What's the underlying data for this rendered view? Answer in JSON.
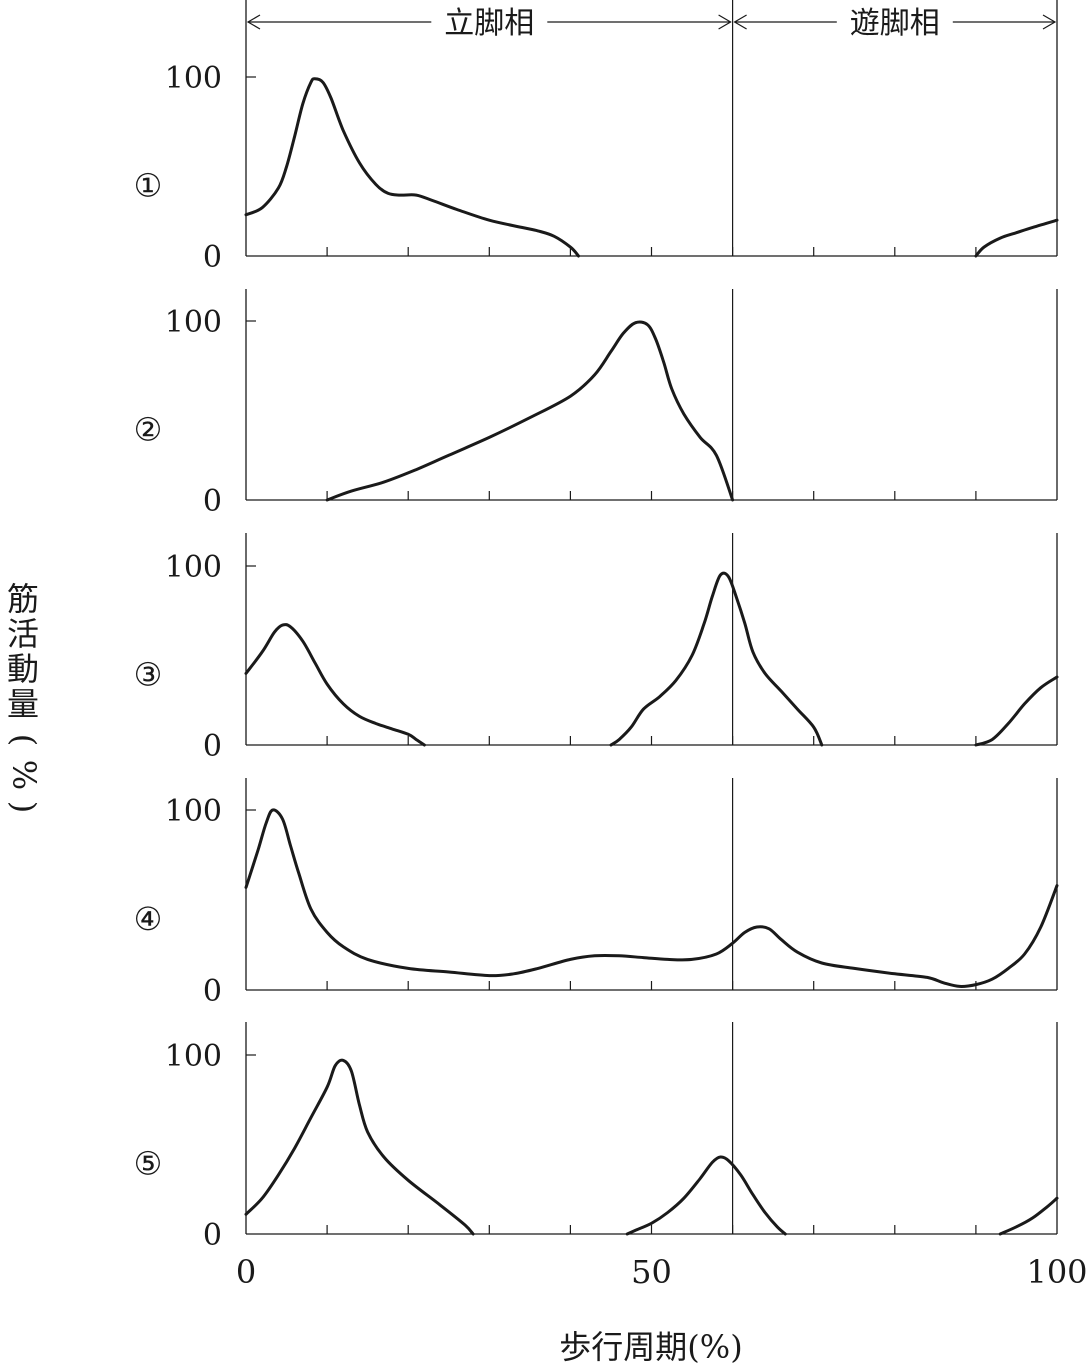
{
  "chart_data": {
    "type": "line",
    "xlabel": "歩行周期(%)",
    "ylabel": "筋活動量(%)",
    "xlim": [
      0,
      100
    ],
    "ylim": [
      0,
      118
    ],
    "x_ticks": [
      0,
      50,
      100
    ],
    "y_ticks": [
      0,
      100
    ],
    "minor_x_ticks": [
      10,
      20,
      30,
      40,
      50,
      60,
      70,
      80,
      90
    ],
    "stance_swing_boundary": 60,
    "phases": [
      {
        "label": "立脚相",
        "from": 0,
        "to": 60
      },
      {
        "label": "遊脚相",
        "from": 60,
        "to": 100
      }
    ],
    "panels": [
      {
        "label": "①",
        "segments": [
          [
            [
              0,
              23
            ],
            [
              2,
              27
            ],
            [
              4,
              38
            ],
            [
              5,
              50
            ],
            [
              6,
              67
            ],
            [
              7,
              85
            ],
            [
              8,
              97
            ],
            [
              8.5,
              99
            ],
            [
              9.5,
              97
            ],
            [
              10.5,
              88
            ],
            [
              12,
              70
            ],
            [
              14,
              52
            ],
            [
              16,
              40
            ],
            [
              17.5,
              35
            ],
            [
              19,
              34
            ],
            [
              21,
              34
            ],
            [
              23,
              31
            ],
            [
              26,
              26
            ],
            [
              30,
              20
            ],
            [
              34,
              16
            ],
            [
              36,
              14
            ],
            [
              38,
              11
            ],
            [
              40,
              5
            ],
            [
              41,
              0
            ]
          ],
          [
            [
              90,
              0
            ],
            [
              91,
              5
            ],
            [
              93,
              10
            ],
            [
              95,
              13
            ],
            [
              97,
              16
            ],
            [
              100,
              20
            ]
          ]
        ]
      },
      {
        "label": "②",
        "segments": [
          [
            [
              10,
              0
            ],
            [
              13,
              5
            ],
            [
              17,
              10
            ],
            [
              21,
              17
            ],
            [
              25,
              25
            ],
            [
              30,
              35
            ],
            [
              35,
              46
            ],
            [
              40,
              58
            ],
            [
              43,
              70
            ],
            [
              45,
              83
            ],
            [
              46.5,
              93
            ],
            [
              48,
              99
            ],
            [
              49.5,
              98
            ],
            [
              50.5,
              90
            ],
            [
              51.5,
              77
            ],
            [
              52.5,
              62
            ],
            [
              54,
              48
            ],
            [
              56,
              35
            ],
            [
              58,
              25
            ],
            [
              60,
              0
            ]
          ]
        ]
      },
      {
        "label": "③",
        "segments": [
          [
            [
              0,
              40
            ],
            [
              2,
              52
            ],
            [
              3.5,
              63
            ],
            [
              4.5,
              67
            ],
            [
              5.5,
              66
            ],
            [
              7,
              58
            ],
            [
              8.5,
              46
            ],
            [
              10,
              34
            ],
            [
              12,
              23
            ],
            [
              14,
              16
            ],
            [
              16,
              12
            ],
            [
              18,
              9
            ],
            [
              20,
              6
            ],
            [
              21,
              3
            ],
            [
              22,
              0
            ]
          ],
          [
            [
              45,
              0
            ],
            [
              46,
              3
            ],
            [
              47.5,
              10
            ],
            [
              49,
              20
            ],
            [
              51,
              27
            ],
            [
              53,
              36
            ],
            [
              55,
              50
            ],
            [
              56.5,
              68
            ],
            [
              57.5,
              83
            ],
            [
              58.5,
              95
            ],
            [
              59.5,
              94
            ],
            [
              60.5,
              82
            ],
            [
              61.5,
              68
            ],
            [
              62.5,
              52
            ],
            [
              64,
              40
            ],
            [
              66,
              30
            ],
            [
              68,
              20
            ],
            [
              70,
              10
            ],
            [
              71,
              0
            ]
          ],
          [
            [
              90,
              0
            ],
            [
              92,
              3
            ],
            [
              94,
              12
            ],
            [
              96,
              23
            ],
            [
              98,
              32
            ],
            [
              100,
              38
            ]
          ]
        ]
      },
      {
        "label": "④",
        "segments": [
          [
            [
              0,
              57
            ],
            [
              1.5,
              78
            ],
            [
              2.5,
              93
            ],
            [
              3.3,
              100
            ],
            [
              4.5,
              95
            ],
            [
              5.5,
              80
            ],
            [
              6.5,
              65
            ],
            [
              8,
              45
            ],
            [
              10,
              32
            ],
            [
              12,
              24
            ],
            [
              15,
              17
            ],
            [
              20,
              12
            ],
            [
              25,
              10
            ],
            [
              30,
              8
            ],
            [
              33,
              9
            ],
            [
              36,
              12
            ],
            [
              40,
              17
            ],
            [
              43,
              19
            ],
            [
              46,
              19
            ],
            [
              49,
              18
            ],
            [
              52,
              17
            ],
            [
              55,
              17
            ],
            [
              58,
              20
            ],
            [
              60,
              26
            ],
            [
              61.5,
              32
            ],
            [
              63,
              35
            ],
            [
              64.5,
              34
            ],
            [
              66,
              28
            ],
            [
              68,
              21
            ],
            [
              71,
              15
            ],
            [
              75,
              12
            ],
            [
              80,
              9
            ],
            [
              84,
              7
            ],
            [
              86,
              4
            ],
            [
              88,
              2
            ],
            [
              90,
              3
            ],
            [
              92,
              6
            ],
            [
              94,
              12
            ],
            [
              96,
              20
            ],
            [
              98,
              35
            ],
            [
              100,
              58
            ]
          ]
        ]
      },
      {
        "label": "⑤",
        "segments": [
          [
            [
              0,
              11
            ],
            [
              2,
              20
            ],
            [
              4,
              33
            ],
            [
              6,
              48
            ],
            [
              8,
              65
            ],
            [
              10,
              82
            ],
            [
              11,
              94
            ],
            [
              12,
              97
            ],
            [
              13,
              91
            ],
            [
              14,
              72
            ],
            [
              15,
              57
            ],
            [
              17,
              43
            ],
            [
              20,
              30
            ],
            [
              24,
              16
            ],
            [
              27,
              5
            ],
            [
              28,
              0
            ]
          ],
          [
            [
              47,
              0
            ],
            [
              48,
              2
            ],
            [
              50,
              6
            ],
            [
              52,
              12
            ],
            [
              54,
              20
            ],
            [
              56,
              31
            ],
            [
              57.5,
              40
            ],
            [
              58.5,
              43
            ],
            [
              59.5,
              41
            ],
            [
              61,
              33
            ],
            [
              62.5,
              22
            ],
            [
              64,
              12
            ],
            [
              65.5,
              4
            ],
            [
              66.5,
              0
            ]
          ],
          [
            [
              93,
              0
            ],
            [
              95,
              4
            ],
            [
              97,
              9
            ],
            [
              99,
              16
            ],
            [
              100,
              20
            ]
          ]
        ]
      }
    ]
  }
}
